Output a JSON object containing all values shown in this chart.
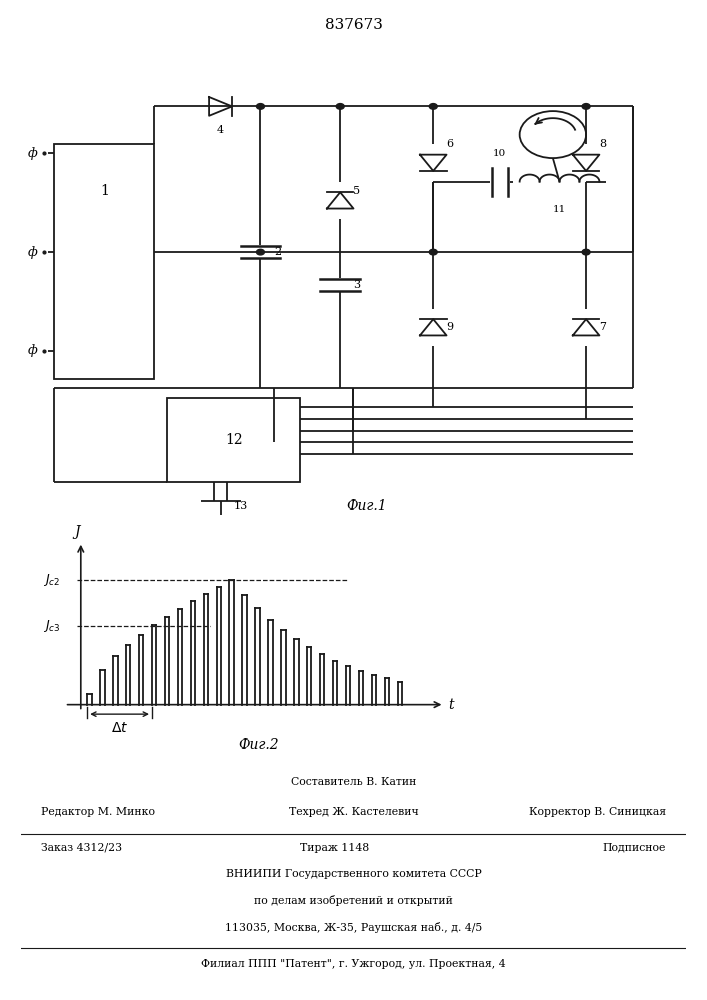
{
  "title": "837673",
  "fig1_caption": "Фиг.1",
  "fig2_caption": "Фиг.2",
  "bg_color": "#ffffff",
  "line_color": "#1a1a1a",
  "footer_row1_center": "Составитель В. Катин",
  "footer_row2_left": "Редактор М. Минко",
  "footer_row2_center": "Техред Ж. Кастелевич",
  "footer_row2_right": "Корректор В. Синицкая",
  "footer_row3_left": "Заказ 4312/23",
  "footer_row3_center": "Тираж 1148",
  "footer_row3_right": "Подписное",
  "footer_row4": "ВНИИПИ Государственного комитета СССР",
  "footer_row5": "по делам изобретений и открытий",
  "footer_row6": "113035, Москва, Ж-35, Раушская наб., д. 4/5",
  "footer_row7": "Филиал ППП \"Патент\", г. Ужгород, ул. Проектная, 4"
}
